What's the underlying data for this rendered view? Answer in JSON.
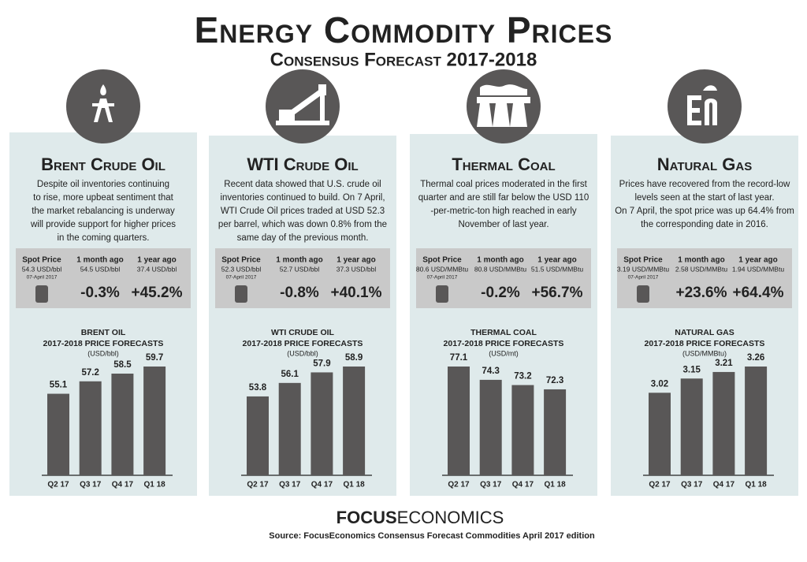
{
  "header": {
    "title": "Energy Commodity Prices",
    "subtitle": "Consensus Forecast 2017-2018"
  },
  "panels": [
    {
      "name": "Brent Crude Oil",
      "text": [
        "Despite oil inventories continuing",
        "to rise, more upbeat sentiment that",
        "the market  rebalancing is underway",
        "will provide  support  for higher prices",
        "in the coming  quarters."
      ],
      "stats": {
        "spot_label": "Spot Price",
        "spot_value": "54.3 USD/bbl",
        "spot_date": "07-April 2017",
        "month_label": "1 month ago",
        "month_value": "54.5 USD/bbl",
        "month_change": "-0.3%",
        "year_label": "1 year ago",
        "year_value": "37.4 USD/bbl",
        "year_change": "+45.2%"
      }
    },
    {
      "name": "WTI Crude Oil",
      "text": [
        "Recent data showed that U.S. crude oil",
        "inventories continued to build. On 7 April,",
        "WTI Crude Oil prices traded at USD 52.3",
        "per barrel, which was down 0.8% from the",
        "same day of the  previous month."
      ],
      "stats": {
        "spot_label": "Spot Price",
        "spot_value": "52.3 USD/bbl",
        "spot_date": "07-April 2017",
        "month_label": "1 month ago",
        "month_value": "52.7 USD/bbl",
        "month_change": "-0.8%",
        "year_label": "1 year ago",
        "year_value": "37.3 USD/bbl",
        "year_change": "+40.1%"
      }
    },
    {
      "name": "Thermal Coal",
      "text": [
        "Thermal coal prices moderated in the first",
        "quarter and are still far below the USD 110",
        "-per-metric-ton high reached in early",
        "November of last year."
      ],
      "stats": {
        "spot_label": "Spot Price",
        "spot_value": "80.6 USD/MMBtu",
        "spot_date": "07-April 2017",
        "month_label": "1 month ago",
        "month_value": "80.8 USD/MMBtu",
        "month_change": "-0.2%",
        "year_label": "1 year ago",
        "year_value": "51.5 USD/MMBtu",
        "year_change": "+56.7%"
      }
    },
    {
      "name": "Natural Gas",
      "text": [
        "Prices have recovered from the record-low",
        "levels seen at the start of last year.",
        "On 7 April, the spot price was up 64.4% from",
        "the corresponding date in 2016."
      ],
      "stats": {
        "spot_label": "Spot Price",
        "spot_value": "3.19 USD/MMBtu",
        "spot_date": "07-April 2017",
        "month_label": "1 month ago",
        "month_value": "2.58 USD/MMBtu",
        "month_change": "+23.6%",
        "year_label": "1 year ago",
        "year_value": "1.94 USD/MMBtu",
        "year_change": "+64.4%"
      }
    }
  ],
  "chart_data": [
    {
      "type": "bar",
      "title": "BRENT OIL",
      "subtitle": "2017-2018 PRICE FORECASTS",
      "unit": "(USD/bbl)",
      "categories": [
        "Q2 17",
        "Q3 17",
        "Q4 17",
        "Q1 18"
      ],
      "values": [
        55.1,
        57.2,
        58.5,
        59.7
      ],
      "color": "#595757"
    },
    {
      "type": "bar",
      "title": "WTI CRUDE OIL",
      "subtitle": "2017-2018 PRICE FORECASTS",
      "unit": "(USD/bbl)",
      "categories": [
        "Q2 17",
        "Q3 17",
        "Q4 17",
        "Q1 18"
      ],
      "values": [
        53.8,
        56.1,
        57.9,
        58.9
      ],
      "color": "#595757"
    },
    {
      "type": "bar",
      "title": "THERMAL COAL",
      "subtitle": "2017-2018 PRICE FORECASTS",
      "unit": "(USD/mt)",
      "categories": [
        "Q2 17",
        "Q3 17",
        "Q4 17",
        "Q1 18"
      ],
      "values": [
        77.1,
        74.3,
        73.2,
        72.3
      ],
      "color": "#595757"
    },
    {
      "type": "bar",
      "title": "NATURAL GAS",
      "subtitle": "2017-2018 PRICE FORECASTS",
      "unit": "(USD/MMBtu)",
      "categories": [
        "Q2 17",
        "Q3 17",
        "Q4 17",
        "Q1 18"
      ],
      "values": [
        3.02,
        3.15,
        3.21,
        3.26
      ],
      "color": "#595757"
    }
  ],
  "footer": {
    "brand_bold": "FOCUS",
    "brand_light": "ECONOMICS",
    "source": "Source: FocusEconomics Consensus Forecast Commodities April 2017 edition"
  }
}
